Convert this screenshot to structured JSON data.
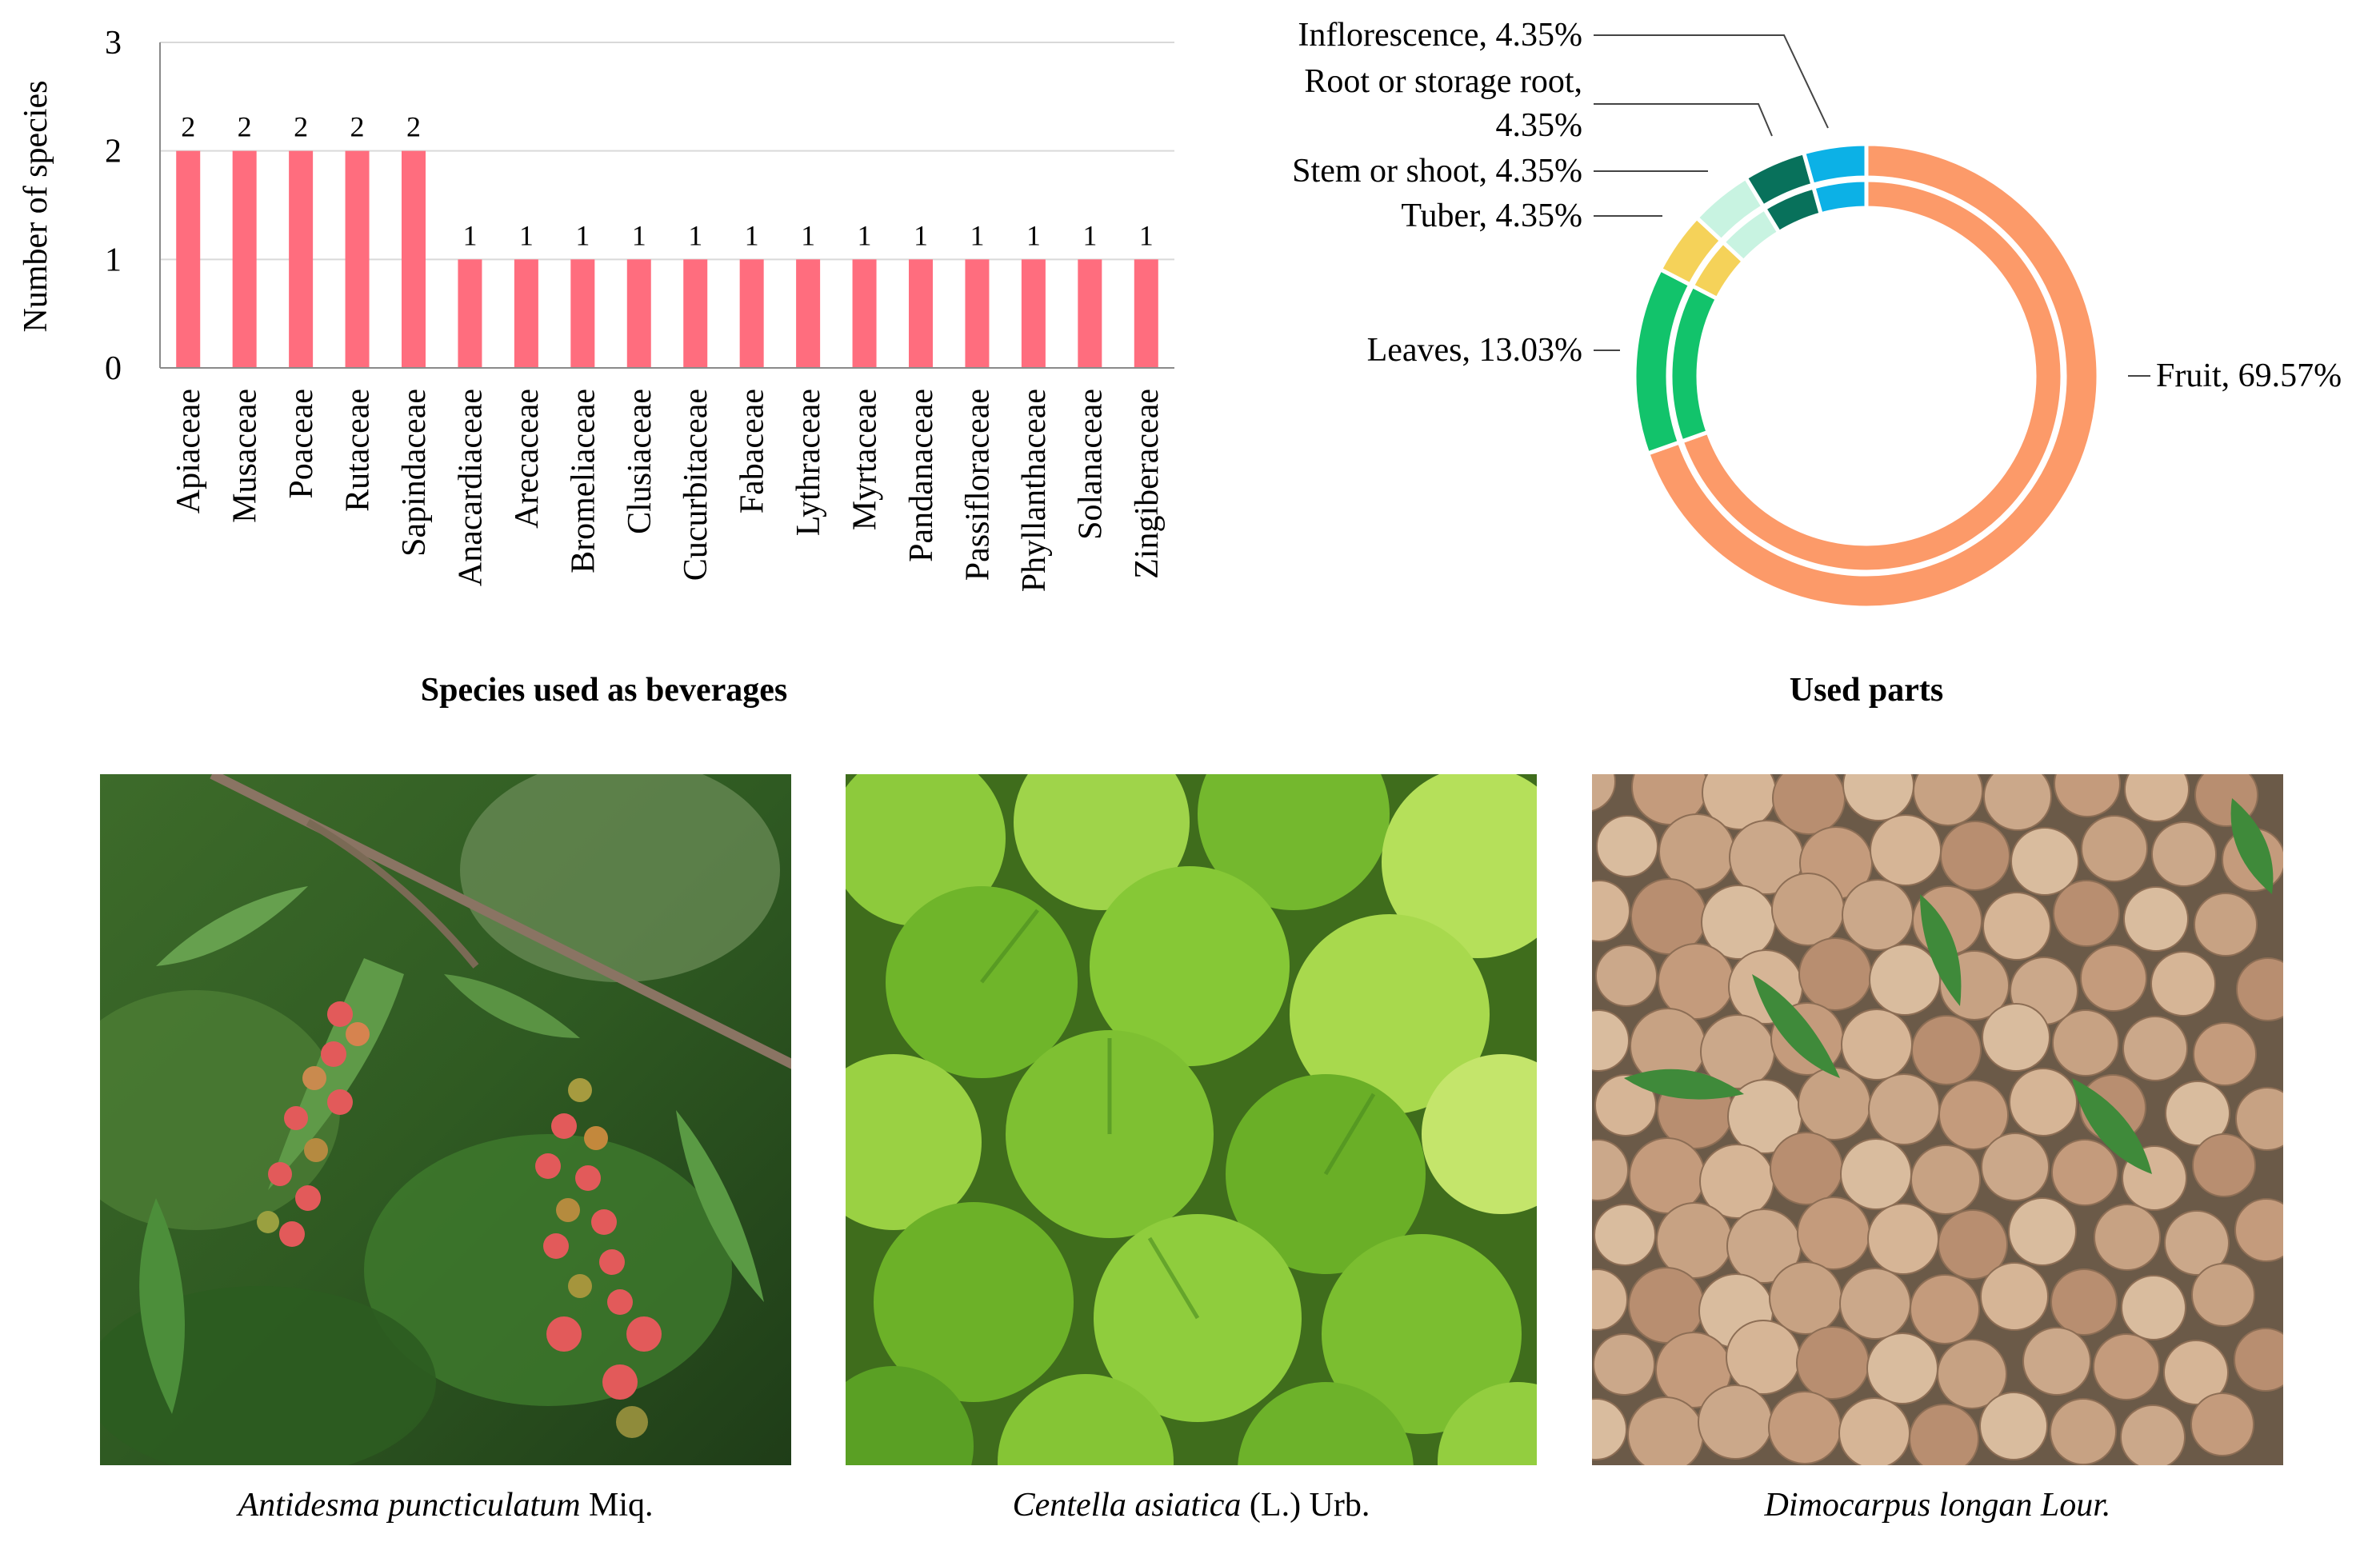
{
  "chart_data": [
    {
      "type": "bar",
      "title": "Species used as beverages",
      "ylabel": "Number of species",
      "xlabel": "",
      "ylim": [
        0,
        3
      ],
      "yticks": [
        0,
        1,
        2,
        3
      ],
      "grid": true,
      "color": "#ff6d7e",
      "categories": [
        "Apiaceae",
        "Musaceae",
        "Poaceae",
        "Rutaceae",
        "Sapindaceae",
        "Anacardiaceae",
        "Arecaceae",
        "Bromeliaceae",
        "Clusiaceae",
        "Cucurbitaceae",
        "Fabaceae",
        "Lythraceae",
        "Myrtaceae",
        "Pandanaceae",
        "Passifloraceae",
        "Phyllanthaceae",
        "Solanaceae",
        "Zingiberaceae"
      ],
      "values": [
        2,
        2,
        2,
        2,
        2,
        1,
        1,
        1,
        1,
        1,
        1,
        1,
        1,
        1,
        1,
        1,
        1,
        1
      ]
    },
    {
      "type": "pie",
      "title": "Used parts",
      "style": "double-ring donut",
      "slices": [
        {
          "label": "Fruit, 69.57%",
          "value": 69.57,
          "color": "#fc9a69"
        },
        {
          "label": "Leaves, 13.03%",
          "value": 13.03,
          "color": "#12c36b"
        },
        {
          "label": "Tuber, 4.35%",
          "value": 4.35,
          "color": "#f5d259"
        },
        {
          "label": "Stem or shoot, 4.35%",
          "value": 4.35,
          "color": "#c8f3e1"
        },
        {
          "label": "Root or storage root,",
          "label2": "4.35%",
          "value": 4.35,
          "color": "#08715b"
        },
        {
          "label": "Inflorescence, 4.35%",
          "value": 4.35,
          "color": "#0cb1e6"
        }
      ]
    }
  ],
  "photos": [
    {
      "icon": "antidesma-berries-photo",
      "caption_italic": "Antidesma puncticulatum",
      "caption_rest": " Miq."
    },
    {
      "icon": "centella-leaves-photo",
      "caption_italic": "Centella asiatica",
      "caption_rest": " (L.) Urb."
    },
    {
      "icon": "longan-fruits-photo",
      "caption_italic": "Dimocarpus longan Lour.",
      "caption_rest": ""
    }
  ]
}
